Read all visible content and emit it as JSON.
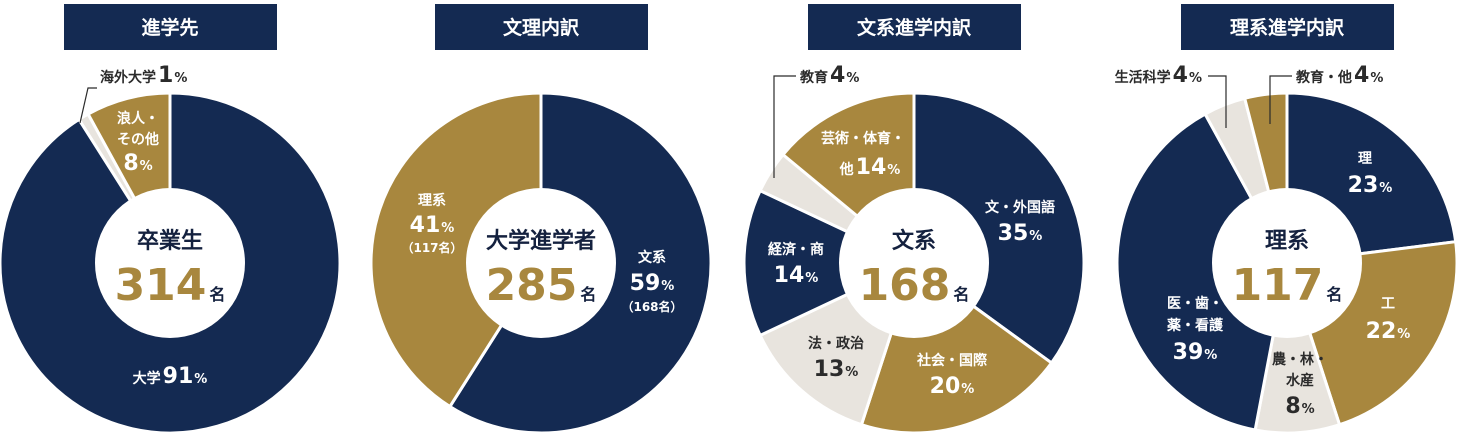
{
  "colors": {
    "navy": "#142a52",
    "gold": "#a8873e",
    "light": "#e8e4de",
    "text": "#2b2b2b",
    "white": "#ffffff"
  },
  "chart_data": [
    {
      "type": "pie",
      "title": "進学先",
      "center": {
        "label": "卒業生",
        "value": "314",
        "unit": "名"
      },
      "slices": [
        {
          "name": "海外大学",
          "value": 1,
          "color": "light",
          "label_lines": [],
          "pct_text": "1",
          "pct_unit": "%"
        },
        {
          "name": "浪人・その他",
          "value": 8,
          "color": "gold",
          "label_lines": [
            "浪人・",
            "その他"
          ],
          "pct_text": "8",
          "pct_unit": "%"
        },
        {
          "name": "大学",
          "value": 91,
          "color": "navy",
          "label_lines": [],
          "pct_text": "91",
          "pct_unit": "%"
        }
      ],
      "labels": {
        "kaigai": "海外大学",
        "kaigai_pct": "1",
        "daigaku": "大学",
        "daigaku_pct": "91"
      }
    },
    {
      "type": "pie",
      "title": "文理内訳",
      "center": {
        "label": "大学進学者",
        "value": "285",
        "unit": "名"
      },
      "slices": [
        {
          "name": "文系",
          "value": 59,
          "color": "navy",
          "count": "（168名）"
        },
        {
          "name": "理系",
          "value": 41,
          "color": "gold",
          "count": "（117名）"
        }
      ]
    },
    {
      "type": "pie",
      "title": "文系進学内訳",
      "center": {
        "label": "文系",
        "value": "168",
        "unit": "名"
      },
      "slices": [
        {
          "name": "文・外国語",
          "value": 35,
          "color": "navy"
        },
        {
          "name": "社会・国際",
          "value": 20,
          "color": "gold"
        },
        {
          "name": "法・政治",
          "value": 13,
          "color": "light"
        },
        {
          "name": "経済・商",
          "value": 14,
          "color": "navy"
        },
        {
          "name": "教育",
          "value": 4,
          "color": "light"
        },
        {
          "name": "芸術・体育・他",
          "value": 14,
          "color": "gold"
        }
      ]
    },
    {
      "type": "pie",
      "title": "理系進学内訳",
      "center": {
        "label": "理系",
        "value": "117",
        "unit": "名"
      },
      "slices": [
        {
          "name": "理",
          "value": 23,
          "color": "navy"
        },
        {
          "name": "工",
          "value": 22,
          "color": "gold"
        },
        {
          "name": "農・林・水産",
          "value": 8,
          "color": "light"
        },
        {
          "name": "医・歯・薬・看護",
          "value": 39,
          "color": "navy"
        },
        {
          "name": "生活科学",
          "value": 4,
          "color": "light"
        },
        {
          "name": "教育・他",
          "value": 4,
          "color": "gold"
        }
      ]
    }
  ],
  "text": {
    "p1": {
      "kaigai": "海外大学",
      "kaigai_pct": "1",
      "ronin1": "浪人・",
      "ronin2": "その他",
      "ronin_pct": "8",
      "daigaku": "大学",
      "daigaku_pct": "91"
    },
    "p2": {
      "rikei": "理系",
      "rikei_pct": "41",
      "rikei_cnt": "（117名）",
      "bunkei": "文系",
      "bunkei_pct": "59",
      "bunkei_cnt": "（168名）"
    },
    "p3": {
      "kyoiku": "教育",
      "kyoiku_pct": "4",
      "geijutsu1": "芸術・体育・",
      "geijutsu2": "他",
      "geijutsu_pct": "14",
      "bun": "文・外国語",
      "bun_pct": "35",
      "keizai": "経済・商",
      "keizai_pct": "14",
      "ho": "法・政治",
      "ho_pct": "13",
      "shakai": "社会・国際",
      "shakai_pct": "20"
    },
    "p4": {
      "seikatsu": "生活科学",
      "seikatsu_pct": "4",
      "kyoiku": "教育・他",
      "kyoiku_pct": "4",
      "ri": "理",
      "ri_pct": "23",
      "ko": "工",
      "ko_pct": "22",
      "i1": "医・歯・",
      "i2": "薬・看護",
      "i_pct": "39",
      "no1": "農・林・",
      "no2": "水産",
      "no_pct": "8"
    },
    "pct_unit": "%"
  }
}
